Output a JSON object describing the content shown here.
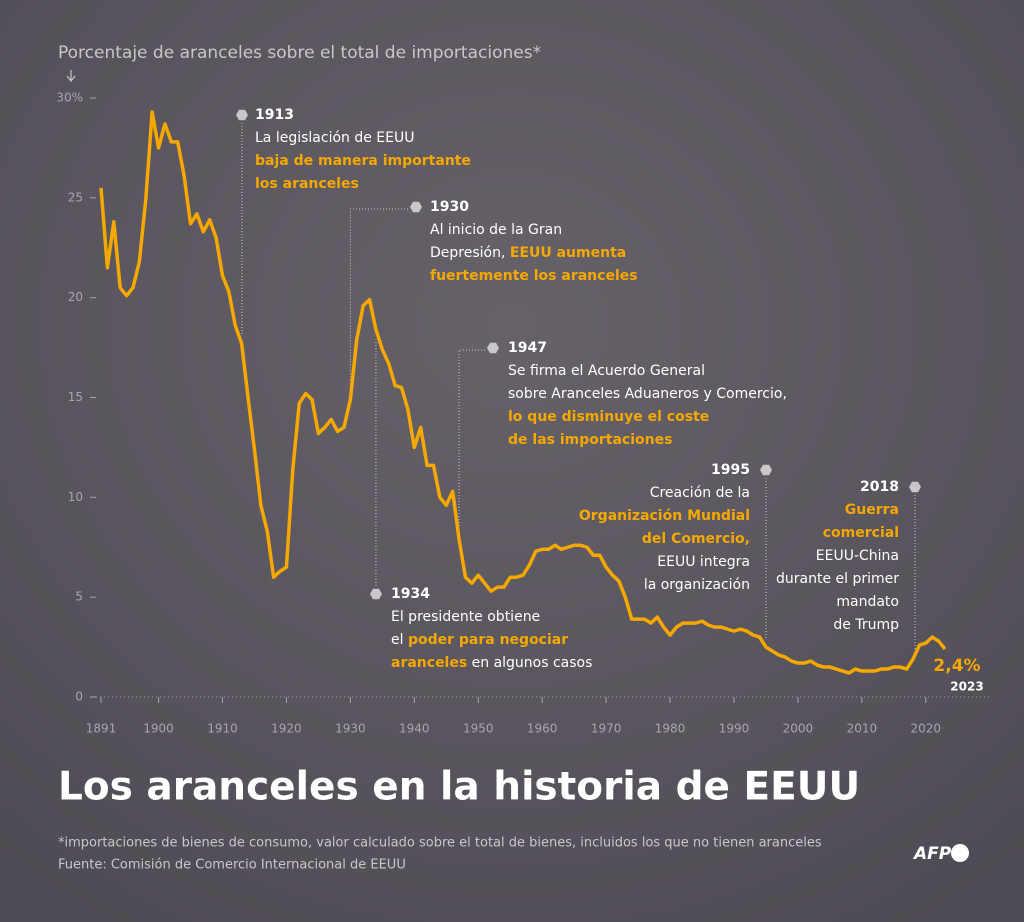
{
  "chart_data": {
    "type": "line",
    "title": "Los aranceles en la historia de EEUU",
    "subtitle": "Porcentaje de aranceles sobre el total de importaciones*",
    "footnote": "*importaciones de bienes de consumo, valor calculado sobre el total de bienes, incluidos los que no tienen aranceles",
    "source": "Fuente: Comisión de Comercio Internacional de EEUU",
    "logo": "AFP",
    "x": [
      1891,
      1892,
      1893,
      1894,
      1895,
      1896,
      1897,
      1898,
      1899,
      1900,
      1901,
      1902,
      1903,
      1904,
      1905,
      1906,
      1907,
      1908,
      1909,
      1910,
      1911,
      1912,
      1913,
      1914,
      1915,
      1916,
      1917,
      1918,
      1919,
      1920,
      1921,
      1922,
      1923,
      1924,
      1925,
      1926,
      1927,
      1928,
      1929,
      1930,
      1931,
      1932,
      1933,
      1934,
      1935,
      1936,
      1937,
      1938,
      1939,
      1940,
      1941,
      1942,
      1943,
      1944,
      1945,
      1946,
      1947,
      1948,
      1949,
      1950,
      1951,
      1952,
      1953,
      1954,
      1955,
      1956,
      1957,
      1958,
      1959,
      1960,
      1961,
      1962,
      1963,
      1964,
      1965,
      1966,
      1967,
      1968,
      1969,
      1970,
      1971,
      1972,
      1973,
      1974,
      1975,
      1976,
      1977,
      1978,
      1979,
      1980,
      1981,
      1982,
      1983,
      1984,
      1985,
      1986,
      1987,
      1988,
      1989,
      1990,
      1991,
      1992,
      1993,
      1994,
      1995,
      1996,
      1997,
      1998,
      1999,
      2000,
      2001,
      2002,
      2003,
      2004,
      2005,
      2006,
      2007,
      2008,
      2009,
      2010,
      2011,
      2012,
      2013,
      2014,
      2015,
      2016,
      2017,
      2018,
      2019,
      2020,
      2021,
      2022,
      2023
    ],
    "series": [
      {
        "color": "#f5a800",
        "values": [
          25.5,
          21.5,
          23.8,
          20.5,
          20.1,
          20.5,
          21.8,
          24.9,
          29.3,
          27.5,
          28.7,
          27.8,
          27.8,
          26.1,
          23.7,
          24.2,
          23.3,
          23.9,
          23.0,
          21.1,
          20.3,
          18.6,
          17.7,
          15.0,
          12.4,
          9.6,
          8.3,
          6.0,
          6.3,
          6.5,
          11.4,
          14.7,
          15.2,
          14.9,
          13.2,
          13.5,
          13.9,
          13.3,
          13.5,
          14.9,
          17.9,
          19.6,
          19.9,
          18.4,
          17.4,
          16.7,
          15.6,
          15.5,
          14.4,
          12.5,
          13.5,
          11.6,
          11.6,
          10.0,
          9.6,
          10.3,
          7.9,
          6.0,
          5.7,
          6.1,
          5.7,
          5.3,
          5.5,
          5.5,
          6.0,
          6.0,
          6.1,
          6.6,
          7.3,
          7.4,
          7.4,
          7.6,
          7.4,
          7.5,
          7.6,
          7.6,
          7.5,
          7.1,
          7.1,
          6.5,
          6.1,
          5.8,
          5.0,
          3.9,
          3.9,
          3.9,
          3.7,
          4.0,
          3.5,
          3.1,
          3.5,
          3.7,
          3.7,
          3.7,
          3.8,
          3.6,
          3.5,
          3.5,
          3.4,
          3.3,
          3.4,
          3.3,
          3.1,
          3.0,
          2.5,
          2.3,
          2.1,
          2.0,
          1.8,
          1.7,
          1.7,
          1.8,
          1.6,
          1.5,
          1.5,
          1.4,
          1.3,
          1.2,
          1.4,
          1.3,
          1.3,
          1.3,
          1.4,
          1.4,
          1.5,
          1.5,
          1.4,
          1.9,
          2.6,
          2.7,
          3.0,
          2.8,
          2.4
        ]
      }
    ],
    "end_label": {
      "value": 2.4,
      "label": "2,4%"
    },
    "xlim": [
      1891,
      2023
    ],
    "xticks": [
      1891,
      1900,
      1910,
      1920,
      1930,
      1940,
      1950,
      1960,
      1970,
      1980,
      1990,
      2000,
      2010,
      2020
    ],
    "ylim": [
      0,
      30
    ],
    "yticks": [
      {
        "value": 30,
        "label": "30%"
      },
      25,
      20,
      15,
      10,
      5,
      0
    ],
    "grid": false,
    "annotations": [
      {
        "year": 1913,
        "lines": [
          [
            {
              "text": "La legislación de EEUU"
            }
          ],
          [
            {
              "text": "baja de manera importante",
              "em": true
            }
          ],
          [
            {
              "text": "los aranceles",
              "em": true
            }
          ]
        ]
      },
      {
        "year": 1930,
        "lines": [
          [
            {
              "text": "Al inicio de la Gran"
            }
          ],
          [
            {
              "text": "Depresión, "
            },
            {
              "text": "EEUU aumenta",
              "em": true
            }
          ],
          [
            {
              "text": "fuertemente los aranceles",
              "em": true
            }
          ]
        ]
      },
      {
        "year": 1947,
        "lines": [
          [
            {
              "text": "Se firma el Acuerdo General"
            }
          ],
          [
            {
              "text": "sobre Aranceles Aduaneros y Comercio,"
            }
          ],
          [
            {
              "text": "lo que disminuye el coste",
              "em": true
            }
          ],
          [
            {
              "text": "de las importaciones",
              "em": true
            }
          ]
        ]
      },
      {
        "year": 1934,
        "lines": [
          [
            {
              "text": "El presidente obtiene"
            }
          ],
          [
            {
              "text": "el "
            },
            {
              "text": "poder para negociar",
              "em": true
            }
          ],
          [
            {
              "text": "aranceles",
              "em": true
            },
            {
              "text": " en algunos casos"
            }
          ]
        ]
      },
      {
        "year": 1995,
        "lines": [
          [
            {
              "text": "Creación de la"
            }
          ],
          [
            {
              "text": "Organización Mundial",
              "em": true
            }
          ],
          [
            {
              "text": "del Comercio,",
              "em": true
            }
          ],
          [
            {
              "text": "EEUU integra"
            }
          ],
          [
            {
              "text": "la organización"
            }
          ]
        ]
      },
      {
        "year": 2018,
        "lines": [
          [
            {
              "text": "Guerra",
              "em": true
            }
          ],
          [
            {
              "text": "comercial",
              "em": true
            }
          ],
          [
            {
              "text": "EEUU-China"
            }
          ],
          [
            {
              "text": "durante el primer"
            }
          ],
          [
            {
              "text": "mandato"
            }
          ],
          [
            {
              "text": "de Trump"
            }
          ]
        ]
      }
    ]
  }
}
